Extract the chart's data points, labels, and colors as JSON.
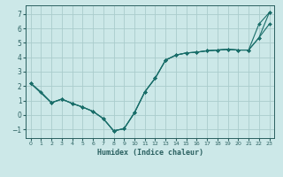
{
  "xlabel": "Humidex (Indice chaleur)",
  "bg_color": "#cce8e8",
  "grid_color": "#aacccc",
  "line_color": "#1a6e6a",
  "axis_color": "#2a6060",
  "xlim": [
    -0.5,
    23.5
  ],
  "ylim": [
    -1.6,
    7.6
  ],
  "xticks": [
    0,
    1,
    2,
    3,
    4,
    5,
    6,
    7,
    8,
    9,
    10,
    11,
    12,
    13,
    14,
    15,
    16,
    17,
    18,
    19,
    20,
    21,
    22,
    23
  ],
  "yticks": [
    -1,
    0,
    1,
    2,
    3,
    4,
    5,
    6,
    7
  ],
  "line1_x": [
    0,
    1,
    2,
    3,
    4,
    5,
    6,
    7,
    8,
    9,
    10,
    11,
    12,
    13,
    14,
    15,
    16,
    17,
    18,
    19,
    20,
    21,
    22,
    23
  ],
  "line1_y": [
    2.2,
    1.6,
    0.85,
    1.1,
    0.8,
    0.55,
    0.25,
    -0.25,
    -1.1,
    -0.95,
    0.15,
    1.6,
    2.55,
    3.8,
    4.15,
    4.3,
    4.35,
    4.45,
    4.5,
    4.55,
    4.5,
    4.5,
    6.3,
    7.1
  ],
  "line2_x": [
    0,
    2,
    3,
    4,
    5,
    6,
    7,
    8,
    9,
    10,
    11,
    12,
    13,
    14,
    15,
    16,
    17,
    18,
    19,
    20,
    21,
    22,
    23
  ],
  "line2_y": [
    2.2,
    0.85,
    1.1,
    0.8,
    0.55,
    0.25,
    -0.25,
    -1.1,
    -0.95,
    0.15,
    1.6,
    2.55,
    3.8,
    4.15,
    4.3,
    4.35,
    4.45,
    4.5,
    4.55,
    4.5,
    4.5,
    5.35,
    6.3
  ],
  "line3_x": [
    0,
    2,
    3,
    4,
    5,
    6,
    7,
    8,
    9,
    10,
    11,
    12,
    13,
    14,
    15,
    16,
    17,
    18,
    19,
    20,
    21,
    22,
    23
  ],
  "line3_y": [
    2.2,
    0.85,
    1.1,
    0.8,
    0.55,
    0.25,
    -0.25,
    -1.1,
    -0.95,
    0.15,
    1.6,
    2.55,
    3.8,
    4.15,
    4.3,
    4.35,
    4.45,
    4.5,
    4.55,
    4.5,
    4.5,
    5.35,
    7.1
  ]
}
